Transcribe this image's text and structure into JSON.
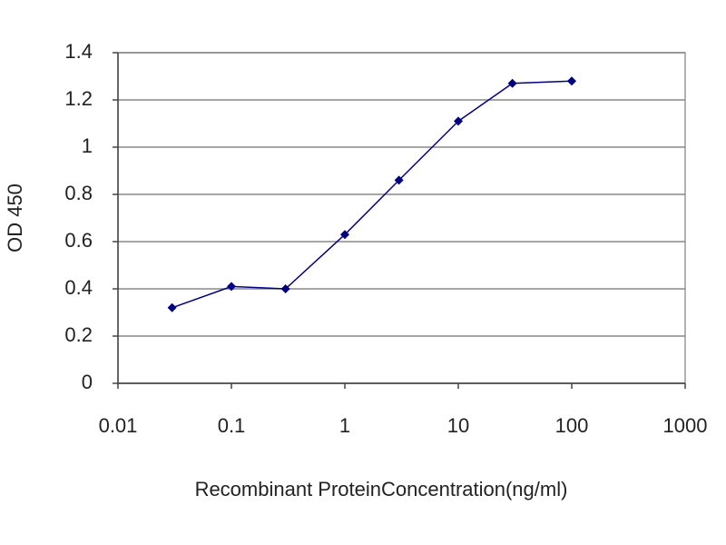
{
  "chart_data": {
    "type": "line",
    "xlabel": "Recombinant ProteinConcentration(ng/ml)",
    "ylabel": "OD 450",
    "x": [
      0.03,
      0.1,
      0.3,
      1,
      3,
      10,
      30,
      100
    ],
    "values": [
      0.32,
      0.41,
      0.4,
      0.63,
      0.86,
      1.11,
      1.27,
      1.28
    ],
    "color": "#000080",
    "xscale": "log",
    "xlim": [
      0.01,
      1000
    ],
    "xticks": [
      0.01,
      0.1,
      1,
      10,
      100,
      1000
    ],
    "ylim": [
      0,
      1.4
    ],
    "yticks": [
      0,
      0.2,
      0.4,
      0.6,
      0.8,
      1,
      1.2,
      1.4
    ],
    "grid": true
  }
}
